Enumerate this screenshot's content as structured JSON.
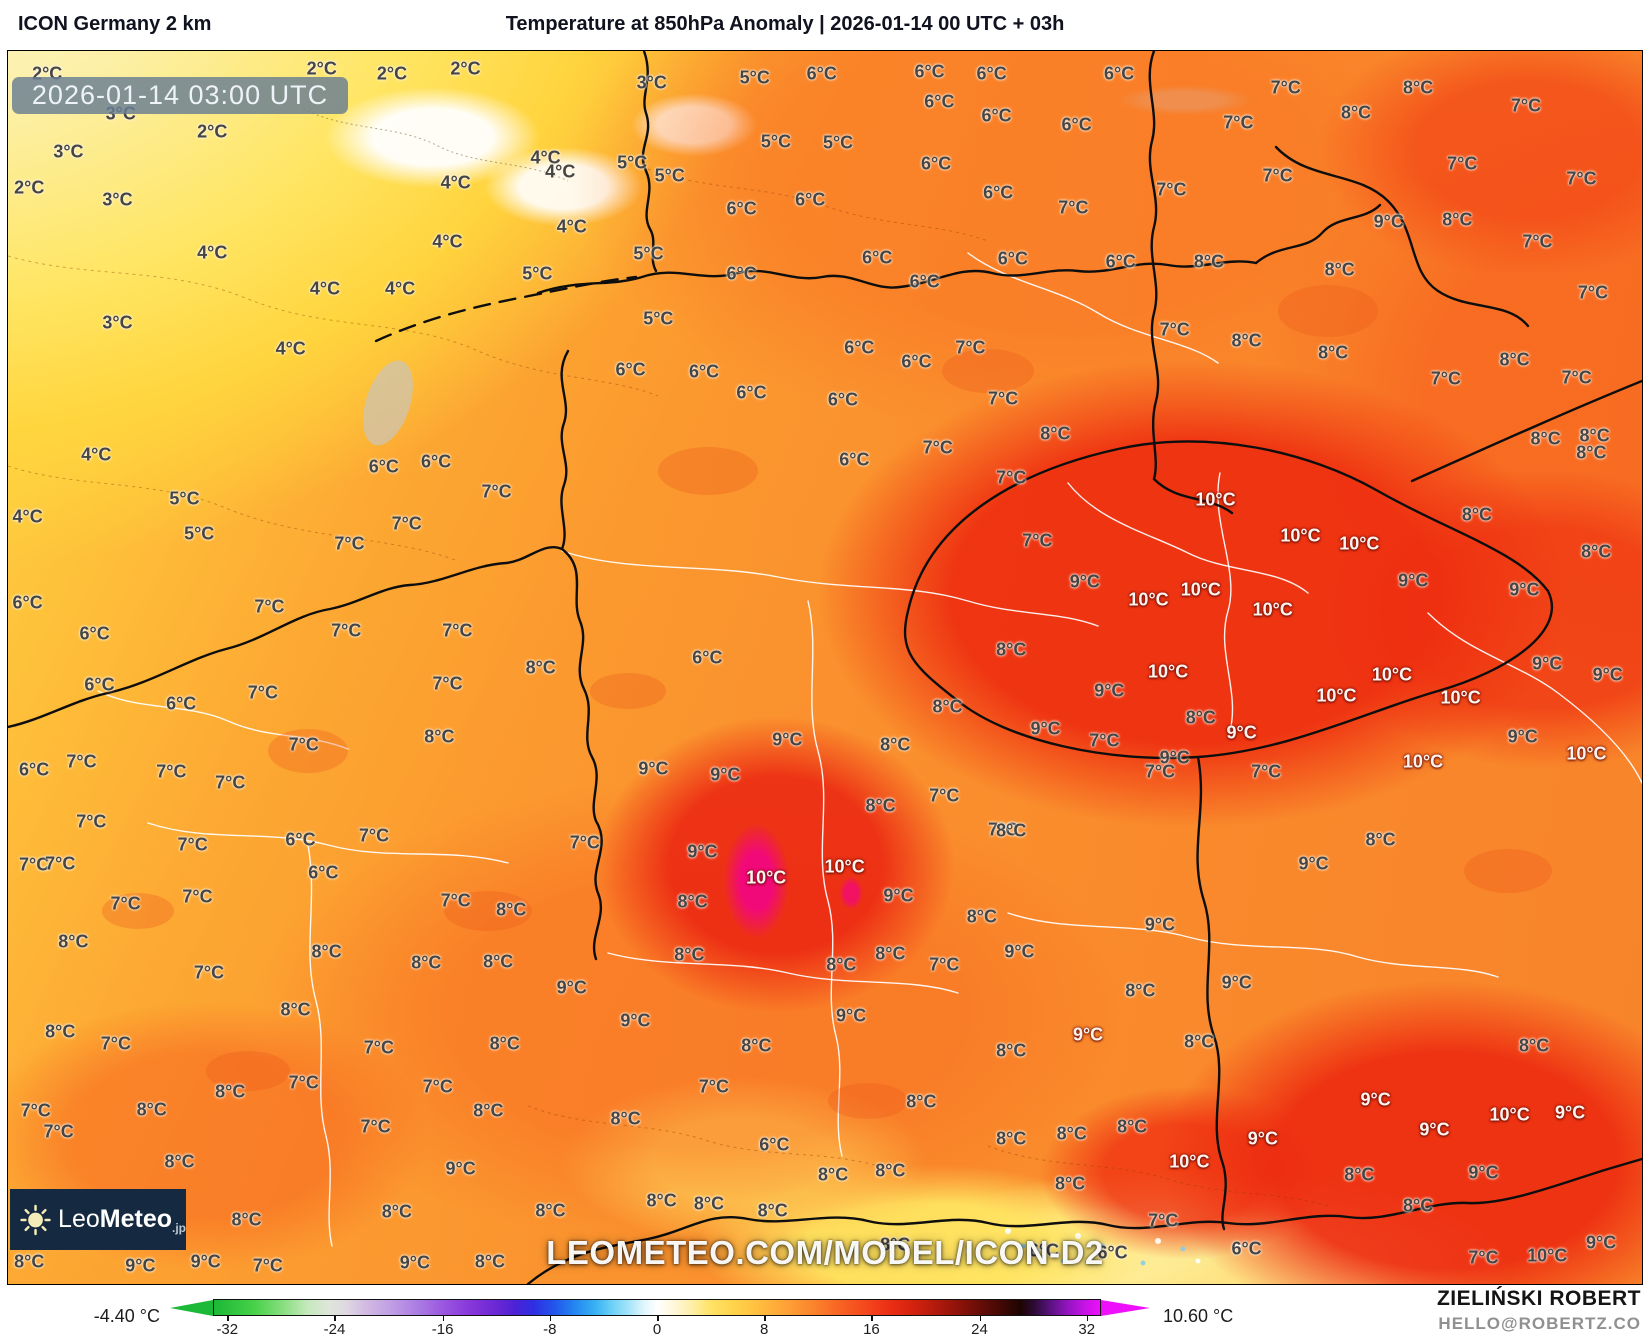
{
  "header": {
    "model": "ICON Germany 2 km",
    "title": "Temperature at 850hPa Anomaly | 2026-01-14 00 UTC + 03h"
  },
  "map": {
    "timestamp_badge": "2026-01-14 03:00 UTC",
    "watermark": "LEOMETEO.COM/MODEL/ICON-D2",
    "logo": {
      "leo": "Leo",
      "meteo": "Meteo",
      "suffix": ".jp"
    },
    "labels": [
      [
        2.4,
        1.9,
        "2°C"
      ],
      [
        19.2,
        1.5,
        "2°C"
      ],
      [
        23.5,
        1.9,
        "2°C"
      ],
      [
        28,
        1.5,
        "2°C"
      ],
      [
        6.9,
        5.1,
        "3°C"
      ],
      [
        12.5,
        6.6,
        "2°C"
      ],
      [
        3.7,
        8.2,
        "3°C"
      ],
      [
        1.3,
        11.1,
        "2°C"
      ],
      [
        6.7,
        12.1,
        "3°C"
      ],
      [
        27.4,
        10.7,
        "4°C"
      ],
      [
        32.9,
        8.7,
        "4°C"
      ],
      [
        38.2,
        9.1,
        "5°C"
      ],
      [
        12.5,
        16.4,
        "4°C"
      ],
      [
        26.9,
        15.5,
        "4°C"
      ],
      [
        24,
        19.3,
        "4°C"
      ],
      [
        32.4,
        18.1,
        "5°C"
      ],
      [
        19.4,
        19.3,
        "4°C"
      ],
      [
        6.7,
        22.1,
        "3°C"
      ],
      [
        17.3,
        24.2,
        "4°C"
      ],
      [
        5.4,
        32.8,
        "4°C"
      ],
      [
        10.8,
        36.3,
        "5°C"
      ],
      [
        1.2,
        37.8,
        "4°C"
      ],
      [
        1.2,
        44.8,
        "6°C"
      ],
      [
        5.3,
        47.3,
        "6°C"
      ],
      [
        39.4,
        2.6,
        "3°C"
      ],
      [
        45.7,
        2.2,
        "5°C"
      ],
      [
        49.8,
        1.9,
        "6°C"
      ],
      [
        56.4,
        1.7,
        "6°C"
      ],
      [
        60.2,
        1.9,
        "6°C"
      ],
      [
        57,
        4.1,
        "6°C"
      ],
      [
        60.5,
        5.3,
        "6°C"
      ],
      [
        65.4,
        6,
        "6°C"
      ],
      [
        47,
        7.4,
        "5°C"
      ],
      [
        50.8,
        7.5,
        "5°C"
      ],
      [
        56.8,
        9.2,
        "6°C"
      ],
      [
        33.8,
        9.8,
        "4°C"
      ],
      [
        40.5,
        10.1,
        "5°C"
      ],
      [
        60.6,
        11.5,
        "6°C"
      ],
      [
        65.2,
        12.7,
        "7°C"
      ],
      [
        44.9,
        12.8,
        "6°C"
      ],
      [
        34.5,
        14.3,
        "4°C"
      ],
      [
        49.1,
        12.1,
        "6°C"
      ],
      [
        39.2,
        16.5,
        "5°C"
      ],
      [
        44.9,
        18.1,
        "6°C"
      ],
      [
        53.2,
        16.8,
        "6°C"
      ],
      [
        56.1,
        18.7,
        "6°C"
      ],
      [
        61.5,
        16.9,
        "6°C"
      ],
      [
        39.8,
        21.7,
        "5°C"
      ],
      [
        38.1,
        25.9,
        "6°C"
      ],
      [
        42.6,
        26,
        "6°C"
      ],
      [
        52.1,
        24.1,
        "6°C"
      ],
      [
        55.6,
        25.2,
        "6°C"
      ],
      [
        58.9,
        24.1,
        "7°C"
      ],
      [
        45.5,
        27.7,
        "6°C"
      ],
      [
        51.1,
        28.3,
        "6°C"
      ],
      [
        60.9,
        28.2,
        "7°C"
      ],
      [
        51.8,
        33.2,
        "6°C"
      ],
      [
        56.9,
        32.2,
        "7°C"
      ],
      [
        64.1,
        31.1,
        "8°C"
      ],
      [
        68,
        1.9,
        "6°C"
      ],
      [
        78.2,
        3,
        "7°C"
      ],
      [
        86.3,
        3,
        "8°C"
      ],
      [
        92.9,
        4.5,
        "7°C"
      ],
      [
        75.3,
        5.8,
        "7°C"
      ],
      [
        82.5,
        5,
        "8°C"
      ],
      [
        89,
        9.2,
        "7°C"
      ],
      [
        96.3,
        10.4,
        "7°C"
      ],
      [
        71.2,
        11.3,
        "7°C"
      ],
      [
        77.7,
        10.1,
        "7°C"
      ],
      [
        88.7,
        13.7,
        "8°C"
      ],
      [
        84.5,
        13.9,
        "9°C"
      ],
      [
        68.1,
        17.1,
        "6°C"
      ],
      [
        73.5,
        17.1,
        "8°C"
      ],
      [
        81.5,
        17.8,
        "8°C"
      ],
      [
        93.6,
        15.5,
        "7°C"
      ],
      [
        97,
        19.6,
        "7°C"
      ],
      [
        71.4,
        22.6,
        "7°C"
      ],
      [
        75.8,
        23.5,
        "8°C"
      ],
      [
        81.1,
        24.5,
        "8°C"
      ],
      [
        92.2,
        25.1,
        "8°C"
      ],
      [
        88,
        26.6,
        "7°C"
      ],
      [
        96,
        26.5,
        "7°C"
      ],
      [
        94.1,
        31.5,
        "8°C"
      ],
      [
        96.9,
        32.6,
        "8°C"
      ],
      [
        23,
        33.7,
        "6°C"
      ],
      [
        26.2,
        33.3,
        "6°C"
      ],
      [
        29.9,
        35.8,
        "7°C"
      ],
      [
        24.4,
        38.4,
        "7°C"
      ],
      [
        20.9,
        40,
        "7°C"
      ],
      [
        11.7,
        39.2,
        "5°C"
      ],
      [
        16,
        45.1,
        "7°C"
      ],
      [
        20.7,
        47,
        "7°C"
      ],
      [
        27.5,
        47,
        "7°C"
      ],
      [
        5.6,
        51.4,
        "6°C"
      ],
      [
        10.6,
        53,
        "6°C"
      ],
      [
        15.6,
        52.1,
        "7°C"
      ],
      [
        26.9,
        51.3,
        "7°C"
      ],
      [
        32.6,
        50,
        "8°C"
      ],
      [
        18.1,
        56.3,
        "7°C"
      ],
      [
        26.4,
        55.6,
        "8°C"
      ],
      [
        4.5,
        57.7,
        "7°C"
      ],
      [
        1.6,
        58.3,
        "6°C"
      ],
      [
        10,
        58.5,
        "7°C"
      ],
      [
        13.6,
        59.4,
        "7°C"
      ],
      [
        5.1,
        62.5,
        "7°C"
      ],
      [
        11.3,
        64.4,
        "7°C"
      ],
      [
        17.9,
        64,
        "6°C"
      ],
      [
        22.4,
        63.7,
        "7°C"
      ],
      [
        1.6,
        66,
        "7°C"
      ],
      [
        42.8,
        49.2,
        "6°C"
      ],
      [
        47.7,
        55.9,
        "9°C"
      ],
      [
        54.3,
        56.3,
        "8°C"
      ],
      [
        57.5,
        53.2,
        "8°C"
      ],
      [
        39.5,
        58.2,
        "9°C"
      ],
      [
        43.9,
        58.7,
        "9°C"
      ],
      [
        57.3,
        60.4,
        "7°C"
      ],
      [
        53.4,
        61.2,
        "8°C"
      ],
      [
        60.9,
        63.2,
        "7°C"
      ],
      [
        35.3,
        64.2,
        "7°C"
      ],
      [
        42.5,
        65,
        "9°C"
      ],
      [
        46.4,
        67.1,
        "10°C",
        1
      ],
      [
        51.2,
        66.2,
        "10°C",
        1
      ],
      [
        41.9,
        69,
        "8°C"
      ],
      [
        54.5,
        68.5,
        "9°C"
      ],
      [
        59.6,
        70.2,
        "8°C"
      ],
      [
        41.7,
        73.3,
        "8°C"
      ],
      [
        54,
        73.2,
        "8°C"
      ],
      [
        51,
        74.1,
        "8°C"
      ],
      [
        57.3,
        74.1,
        "7°C"
      ],
      [
        34.5,
        76,
        "9°C"
      ],
      [
        61.4,
        34.6,
        "7°C"
      ],
      [
        97.1,
        31.2,
        "8°C"
      ],
      [
        73.9,
        36.4,
        "10°C",
        1
      ],
      [
        89.9,
        37.6,
        "8°C"
      ],
      [
        79.1,
        39.3,
        "10°C",
        1
      ],
      [
        82.7,
        40,
        "10°C",
        1
      ],
      [
        97.2,
        40.6,
        "8°C"
      ],
      [
        63,
        39.7,
        "7°C"
      ],
      [
        65.9,
        43.1,
        "9°C"
      ],
      [
        69.8,
        44.5,
        "10°C",
        1
      ],
      [
        73,
        43.7,
        "10°C",
        1
      ],
      [
        86,
        43,
        "9°C"
      ],
      [
        92.8,
        43.7,
        "9°C"
      ],
      [
        77.4,
        45.3,
        "10°C",
        1
      ],
      [
        61.4,
        48.6,
        "8°C"
      ],
      [
        71,
        50.4,
        "10°C",
        1
      ],
      [
        67.4,
        51.9,
        "9°C"
      ],
      [
        94.2,
        49.7,
        "9°C"
      ],
      [
        97.9,
        50.6,
        "9°C"
      ],
      [
        84.7,
        50.6,
        "10°C",
        1
      ],
      [
        81.3,
        52.3,
        "10°C",
        1
      ],
      [
        88.9,
        52.5,
        "10°C",
        1
      ],
      [
        63.5,
        55,
        "9°C"
      ],
      [
        75.5,
        55.3,
        "9°C",
        1
      ],
      [
        71.4,
        57.3,
        "9°C"
      ],
      [
        86.6,
        57.7,
        "10°C",
        1
      ],
      [
        92.7,
        55.6,
        "9°C"
      ],
      [
        96.6,
        57,
        "10°C",
        1
      ],
      [
        73,
        54.1,
        "8°C"
      ],
      [
        67.1,
        56,
        "7°C"
      ],
      [
        70.5,
        58.5,
        "7°C"
      ],
      [
        77,
        58.5,
        "7°C"
      ],
      [
        61.4,
        63.3,
        "8°C"
      ],
      [
        84,
        64,
        "8°C"
      ],
      [
        79.9,
        65.9,
        "9°C"
      ],
      [
        70.5,
        70.9,
        "9°C"
      ],
      [
        75.2,
        75.6,
        "9°C"
      ],
      [
        61.9,
        73.1,
        "9°C"
      ],
      [
        69.3,
        76.2,
        "8°C"
      ],
      [
        66.1,
        79.8,
        "9°C",
        1
      ],
      [
        61.4,
        81.1,
        "8°C"
      ],
      [
        72.9,
        80.4,
        "8°C"
      ],
      [
        55.9,
        85.2,
        "8°C"
      ],
      [
        61.4,
        88.2,
        "8°C"
      ],
      [
        65.1,
        87.8,
        "8°C"
      ],
      [
        68.8,
        87.3,
        "8°C"
      ],
      [
        76.8,
        88.2,
        "9°C",
        1
      ],
      [
        72.3,
        90.1,
        "10°C",
        1
      ],
      [
        54,
        90.8,
        "8°C"
      ],
      [
        65,
        91.9,
        "8°C"
      ],
      [
        70.7,
        94.9,
        "7°C"
      ],
      [
        63.4,
        97.3,
        "6°C"
      ],
      [
        67.6,
        97.5,
        "6°C"
      ],
      [
        75.8,
        97.2,
        "6°C"
      ],
      [
        54.3,
        96.8,
        "8°C"
      ],
      [
        45.8,
        80.7,
        "8°C"
      ],
      [
        93.4,
        80.7,
        "8°C"
      ],
      [
        83.7,
        85.1,
        "9°C",
        1
      ],
      [
        91.9,
        86.3,
        "10°C",
        1
      ],
      [
        95.6,
        86.1,
        "9°C",
        1
      ],
      [
        87.3,
        87.5,
        "9°C",
        1
      ],
      [
        90.3,
        91,
        "9°C"
      ],
      [
        82.7,
        91.2,
        "8°C"
      ],
      [
        86.3,
        93.7,
        "8°C"
      ],
      [
        97.5,
        96.7,
        "9°C"
      ],
      [
        1.3,
        98.2,
        "8°C"
      ],
      [
        8.1,
        98.5,
        "9°C"
      ],
      [
        12.1,
        98.2,
        "9°C"
      ],
      [
        15.9,
        98.5,
        "7°C"
      ],
      [
        24.9,
        98.3,
        "9°C"
      ],
      [
        29.5,
        98.2,
        "8°C"
      ],
      [
        90.3,
        97.9,
        "7°C"
      ],
      [
        94.2,
        97.7,
        "10°C"
      ],
      [
        3.2,
        65.9,
        "7°C"
      ],
      [
        19.3,
        66.7,
        "6°C"
      ],
      [
        11.6,
        68.6,
        "7°C"
      ],
      [
        7.2,
        69.2,
        "7°C"
      ],
      [
        27.4,
        68.9,
        "7°C"
      ],
      [
        30.8,
        69.7,
        "8°C"
      ],
      [
        4,
        72.3,
        "8°C"
      ],
      [
        19.5,
        73.1,
        "8°C"
      ],
      [
        25.6,
        74,
        "8°C"
      ],
      [
        30,
        73.9,
        "8°C"
      ],
      [
        12.3,
        74.8,
        "7°C"
      ],
      [
        17.6,
        77.8,
        "8°C"
      ],
      [
        3.2,
        79.6,
        "8°C"
      ],
      [
        6.6,
        80.5,
        "7°C"
      ],
      [
        22.7,
        80.9,
        "7°C"
      ],
      [
        30.4,
        80.5,
        "8°C"
      ],
      [
        1.7,
        86,
        "7°C"
      ],
      [
        8.8,
        85.9,
        "8°C"
      ],
      [
        3.1,
        87.7,
        "7°C"
      ],
      [
        13.6,
        84.4,
        "8°C"
      ],
      [
        18.1,
        83.7,
        "7°C"
      ],
      [
        22.5,
        87.3,
        "7°C"
      ],
      [
        26.3,
        84,
        "7°C"
      ],
      [
        29.4,
        86,
        "8°C"
      ],
      [
        10.5,
        90.1,
        "8°C"
      ],
      [
        27.7,
        90.7,
        "9°C"
      ],
      [
        23.8,
        94.2,
        "8°C"
      ],
      [
        14.6,
        94.8,
        "8°C"
      ],
      [
        38.4,
        78.7,
        "9°C"
      ],
      [
        51.6,
        78.3,
        "9°C"
      ],
      [
        43.2,
        84,
        "7°C"
      ],
      [
        37.8,
        86.6,
        "8°C"
      ],
      [
        46.9,
        88.7,
        "6°C"
      ],
      [
        50.5,
        91.2,
        "8°C"
      ],
      [
        33.2,
        94.1,
        "8°C"
      ],
      [
        40,
        93.3,
        "8°C"
      ],
      [
        42.9,
        93.5,
        "8°C"
      ],
      [
        46.8,
        94.1,
        "8°C"
      ]
    ]
  },
  "colorbar": {
    "min_label": "-4.40 °C",
    "max_label": "10.60 °C",
    "ticks": [
      "-32",
      "-24",
      "-16",
      "-8",
      "0",
      "8",
      "16",
      "24",
      "32"
    ],
    "tick_positions_pct": [
      1.5,
      13.6,
      25.8,
      37.9,
      50,
      62.1,
      74.2,
      86.4,
      98.5
    ],
    "stops": [
      [
        0,
        "#1cb837"
      ],
      [
        4.5,
        "#46d148"
      ],
      [
        8,
        "#8ddf84"
      ],
      [
        10.6,
        "#c6e9bd"
      ],
      [
        13,
        "#dfe6da"
      ],
      [
        15,
        "#ded7e2"
      ],
      [
        17,
        "#d2bce3"
      ],
      [
        20,
        "#c09ee4"
      ],
      [
        23,
        "#ab7ce3"
      ],
      [
        26,
        "#9a55e0"
      ],
      [
        29,
        "#8736da"
      ],
      [
        31.8,
        "#6b28d4"
      ],
      [
        34,
        "#4d22d6"
      ],
      [
        36,
        "#2f2ee2"
      ],
      [
        38.5,
        "#2257ec"
      ],
      [
        40.5,
        "#2382f0"
      ],
      [
        43,
        "#37b1f3"
      ],
      [
        45,
        "#6fd2f6"
      ],
      [
        47,
        "#abe6fa"
      ],
      [
        48.5,
        "#dff6fd"
      ],
      [
        50,
        "#ffffff"
      ],
      [
        52,
        "#fff7d8"
      ],
      [
        54,
        "#ffefa6"
      ],
      [
        56,
        "#ffe367"
      ],
      [
        58.5,
        "#ffd44d"
      ],
      [
        61,
        "#ffc240"
      ],
      [
        63.5,
        "#ffab3a"
      ],
      [
        66,
        "#fd9432"
      ],
      [
        68.5,
        "#fa7b29"
      ],
      [
        71,
        "#f75f22"
      ],
      [
        74,
        "#f4431c"
      ],
      [
        76.5,
        "#ea2d14"
      ],
      [
        79,
        "#d2220f"
      ],
      [
        81.5,
        "#b21a0c"
      ],
      [
        84,
        "#8e130a"
      ],
      [
        86.5,
        "#660d07"
      ],
      [
        89,
        "#400804"
      ],
      [
        91,
        "#1d0502"
      ],
      [
        92.5,
        "#2b0b33"
      ],
      [
        94.5,
        "#5c1284"
      ],
      [
        96.5,
        "#9715c4"
      ],
      [
        98.5,
        "#cb13e8"
      ],
      [
        100,
        "#ee10fa"
      ]
    ]
  },
  "credit": {
    "name": "ZIELIŃSKI ROBERT",
    "email": "HELLO@ROBERTZ.CO"
  },
  "colors": {
    "badge_bg": "#6a7e92",
    "logo_bg": "#152a40",
    "label_dark": "#454545",
    "label_light": "#fdf4ef",
    "arrow_left": "#1cb837",
    "arrow_right": "#ee10fa",
    "credit_gray": "#909090"
  }
}
